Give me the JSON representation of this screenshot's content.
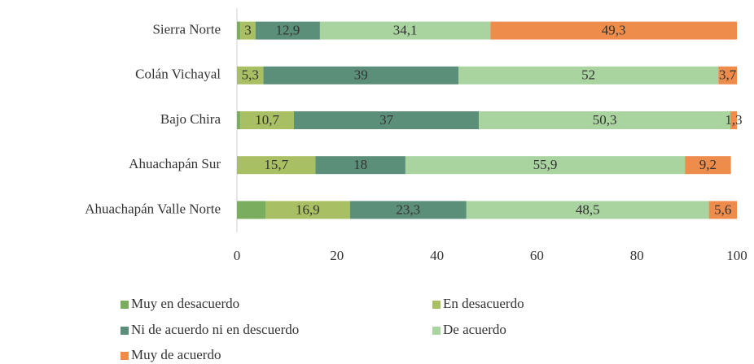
{
  "chart_data": {
    "type": "stacked_barh",
    "categories": [
      "Sierra Norte",
      "Colán Vichayal",
      "Bajo Chira",
      "Ahuachapán Sur",
      "Ahuachapán Valle Norte"
    ],
    "series": [
      {
        "name": "Muy en desacuerdo",
        "color": "#7aad5e",
        "values": [
          0.7,
          null,
          0.7,
          null,
          5.7
        ],
        "value_labels": [
          null,
          null,
          null,
          null,
          null
        ]
      },
      {
        "name": "En desacuerdo",
        "color": "#a8c063",
        "values": [
          3,
          5.3,
          10.7,
          15.7,
          16.9
        ],
        "value_labels": [
          "3",
          "5,3",
          "10,7",
          "15,7",
          "16,9"
        ]
      },
      {
        "name": "Ni de acuerdo ni en descuerdo",
        "color": "#5b8f79",
        "values": [
          12.9,
          39,
          37,
          18,
          23.3
        ],
        "value_labels": [
          "12,9",
          "39",
          "37",
          "18",
          "23,3"
        ]
      },
      {
        "name": "De acuerdo",
        "color": "#a9d4a0",
        "values": [
          34.1,
          52,
          50.3,
          55.9,
          48.5
        ],
        "value_labels": [
          "34,1",
          "52",
          "50,3",
          "55,9",
          "48,5"
        ]
      },
      {
        "name": "Muy de acuerdo",
        "color": "#ee8c4c",
        "values": [
          49.3,
          3.7,
          1.3,
          9.2,
          5.6
        ],
        "value_labels": [
          "49,3",
          "3,7",
          "1,3",
          "9,2",
          "5,6"
        ]
      }
    ],
    "xlim": [
      0,
      100
    ],
    "xticks": [
      0,
      20,
      40,
      60,
      80,
      100
    ],
    "grid": false
  }
}
